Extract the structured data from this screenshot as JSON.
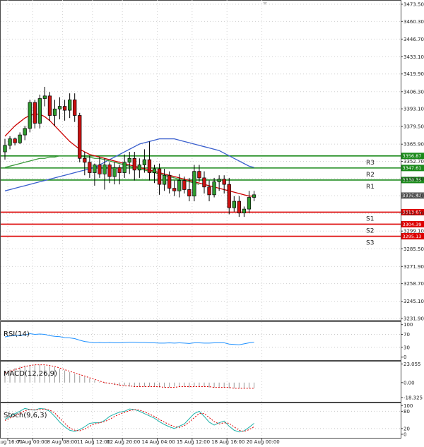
{
  "chart_data": {
    "type": "candlestick",
    "title": "",
    "grid": true,
    "price_axis": {
      "ylim": [
        3231.9,
        3473.5
      ],
      "ticks": [
        3473.5,
        3460.3,
        3446.7,
        3433.1,
        3419.9,
        3406.3,
        3393.1,
        3379.5,
        3365.9,
        3352.7,
        3339.5,
        3326.3,
        3312.7,
        3299.1,
        3285.5,
        3271.9,
        3258.7,
        3245.1,
        3231.9
      ],
      "tick_labels": [
        "3473.50",
        "3460.30",
        "3446.70",
        "3433.10",
        "3419.90",
        "3406.30",
        "3393.10",
        "3379.50",
        "3365.90",
        "3352.70",
        "3339.50",
        "3326.30",
        "3312.70",
        "3299.10",
        "3285.50",
        "3271.90",
        "3258.70",
        "3245.10",
        "3231.90"
      ]
    },
    "time_axis": {
      "labels": [
        "6 Aug 16:00",
        "7 Aug 00:00",
        "8 Aug 08:00",
        "11 Aug 12:00",
        "12 Aug 20:00",
        "14 Aug 04:00",
        "15 Aug 12:00",
        "18 Aug 16:00",
        "20 Aug 00:00"
      ],
      "label_index": [
        0,
        5,
        11,
        17,
        23,
        30,
        37,
        44,
        51
      ]
    },
    "candles": [
      [
        3360,
        3370,
        3354,
        3365
      ],
      [
        3365,
        3372,
        3362,
        3370
      ],
      [
        3370,
        3371,
        3365,
        3367
      ],
      [
        3367,
        3375,
        3366,
        3373
      ],
      [
        3373,
        3380,
        3369,
        3378
      ],
      [
        3378,
        3400,
        3375,
        3398
      ],
      [
        3398,
        3400,
        3378,
        3382
      ],
      [
        3382,
        3404,
        3378,
        3401
      ],
      [
        3401,
        3410,
        3395,
        3403
      ],
      [
        3403,
        3406,
        3384,
        3388
      ],
      [
        3388,
        3400,
        3380,
        3393
      ],
      [
        3393,
        3402,
        3385,
        3395
      ],
      [
        3395,
        3400,
        3384,
        3392
      ],
      [
        3392,
        3405,
        3386,
        3400
      ],
      [
        3400,
        3405,
        3383,
        3388
      ],
      [
        3388,
        3390,
        3352,
        3355
      ],
      [
        3355,
        3360,
        3342,
        3352
      ],
      [
        3352,
        3357,
        3340,
        3344
      ],
      [
        3344,
        3351,
        3334,
        3350
      ],
      [
        3350,
        3356,
        3340,
        3343
      ],
      [
        3343,
        3355,
        3331,
        3350
      ],
      [
        3350,
        3352,
        3336,
        3341
      ],
      [
        3341,
        3352,
        3335,
        3348
      ],
      [
        3348,
        3350,
        3335,
        3344
      ],
      [
        3344,
        3358,
        3340,
        3352
      ],
      [
        3352,
        3360,
        3343,
        3355
      ],
      [
        3355,
        3360,
        3338,
        3346
      ],
      [
        3346,
        3355,
        3340,
        3350
      ],
      [
        3350,
        3362,
        3344,
        3354
      ],
      [
        3354,
        3368,
        3338,
        3344
      ],
      [
        3344,
        3350,
        3336,
        3347
      ],
      [
        3347,
        3351,
        3327,
        3335
      ],
      [
        3335,
        3347,
        3330,
        3342
      ],
      [
        3342,
        3345,
        3328,
        3332
      ],
      [
        3332,
        3338,
        3326,
        3330
      ],
      [
        3330,
        3343,
        3325,
        3338
      ],
      [
        3338,
        3341,
        3328,
        3331
      ],
      [
        3331,
        3340,
        3322,
        3326
      ],
      [
        3326,
        3350,
        3322,
        3345
      ],
      [
        3345,
        3350,
        3337,
        3340
      ],
      [
        3340,
        3345,
        3328,
        3333
      ],
      [
        3333,
        3338,
        3322,
        3327
      ],
      [
        3327,
        3340,
        3325,
        3337
      ],
      [
        3337,
        3342,
        3330,
        3339
      ],
      [
        3339,
        3342,
        3328,
        3335
      ],
      [
        3335,
        3340,
        3312,
        3317
      ],
      [
        3317,
        3326,
        3314,
        3322
      ],
      [
        3322,
        3326,
        3310,
        3313
      ],
      [
        3313,
        3318,
        3310,
        3316
      ],
      [
        3316,
        3330,
        3313,
        3325
      ],
      [
        3325,
        3330,
        3322,
        3327
      ]
    ],
    "ma_fast": {
      "name": "",
      "color": "#cc0000",
      "values": [
        3372,
        3376,
        3380,
        3383,
        3386,
        3388,
        3389,
        3389,
        3387,
        3384,
        3380,
        3376,
        3372,
        3368,
        3365,
        3362,
        3360,
        3358,
        3357,
        3356,
        3355,
        3354,
        3353,
        3352,
        3351,
        3350,
        3349,
        3348,
        3347,
        3346,
        3345,
        3344,
        3343,
        3342,
        3341,
        3340,
        3339,
        3338,
        3337,
        3336,
        3335,
        3334,
        3333,
        3332,
        3331,
        3330,
        3329,
        3328,
        3327,
        3326,
        3326
      ]
    },
    "ma_mid": {
      "name": "",
      "color": "#3a9a3a",
      "values": [
        3348,
        3349,
        3350,
        3351,
        3352,
        3353,
        3354,
        3355,
        3355,
        3356,
        3356,
        3357,
        3357,
        3357,
        3357,
        3357,
        3356,
        3356,
        3355,
        3355,
        3354,
        3353,
        3352,
        3351,
        3350,
        3349,
        3348,
        3347,
        3346,
        3345,
        3344,
        3343,
        3342,
        3341,
        3340,
        3339,
        3338,
        3337,
        3336,
        3335
      ]
    },
    "ma_slow": {
      "name": "",
      "color": "#3a5fcd",
      "values": [
        3330,
        3331,
        3332,
        3333,
        3334,
        3335,
        3336,
        3337,
        3338,
        3339,
        3340,
        3341,
        3342,
        3343,
        3344,
        3345,
        3346,
        3347,
        3348,
        3350,
        3352,
        3354,
        3356,
        3358,
        3360,
        3362,
        3364,
        3366,
        3367,
        3368,
        3369,
        3370,
        3370,
        3370,
        3370,
        3369,
        3368,
        3367,
        3366,
        3365,
        3364,
        3363,
        3362,
        3361,
        3359,
        3357,
        3355,
        3353,
        3351,
        3349,
        3348
      ]
    },
    "levels": [
      {
        "label": "R3",
        "value": 3356.87,
        "tag": "3356.87",
        "color": "#1b8a1b"
      },
      {
        "label": "",
        "value": 3352.7,
        "tag": "3352.70",
        "color": ""
      },
      {
        "label": "R2",
        "value": 3347.61,
        "tag": "3347.61",
        "color": "#1b8a1b"
      },
      {
        "label": "R1",
        "value": 3338.35,
        "tag": "3338.35",
        "color": "#1b8a1b"
      },
      {
        "label": "",
        "value": 3326.42,
        "tag": "3326.42",
        "color": "#555555"
      },
      {
        "label": "S1",
        "value": 3313.65,
        "tag": "3313.65",
        "color": "#dd0000"
      },
      {
        "label": "S2",
        "value": 3304.39,
        "tag": "3304.39",
        "color": "#dd0000"
      },
      {
        "label": "",
        "value": 3299.1,
        "tag": "3299.10",
        "color": ""
      },
      {
        "label": "S3",
        "value": 3295.13,
        "tag": "3295.13",
        "color": "#dd0000"
      }
    ],
    "rsi": {
      "label": "RSI(14)",
      "ticks": [
        100,
        70,
        30,
        0
      ],
      "tick_labels": [
        "100",
        "70",
        "30",
        "0"
      ],
      "values": [
        62,
        65,
        66,
        67,
        68,
        72,
        70,
        71,
        70,
        66,
        64,
        63,
        60,
        59,
        57,
        52,
        48,
        46,
        44,
        45,
        44,
        45,
        44,
        44,
        45,
        46,
        46,
        45,
        45,
        44,
        44,
        43,
        43,
        44,
        43,
        44,
        43,
        42,
        44,
        44,
        43,
        43,
        44,
        44,
        44,
        40,
        39,
        38,
        41,
        44,
        46
      ]
    },
    "macd": {
      "label": "MACD(12,26,9)",
      "ticks": [
        23.055,
        0.0,
        -18.325
      ],
      "tick_labels": [
        "23.055",
        "0.00",
        "-18.325"
      ],
      "histogram": [
        14,
        16,
        18,
        20,
        21,
        22,
        22,
        22,
        21,
        20,
        19,
        17,
        15,
        13,
        11,
        9,
        7,
        5,
        3,
        1,
        -1,
        -2,
        -3,
        -4,
        -4,
        -5,
        -5,
        -5,
        -5,
        -5,
        -5,
        -6,
        -6,
        -6,
        -5,
        -5,
        -5,
        -6,
        -5,
        -5,
        -5,
        -6,
        -6,
        -6,
        -6,
        -7,
        -7,
        -7,
        -7,
        -7,
        -7
      ],
      "signal": [
        12,
        14,
        16,
        18,
        20,
        21,
        22,
        22,
        22,
        21,
        20,
        18,
        16,
        14,
        12,
        10,
        8,
        6,
        4,
        2,
        0,
        -1,
        -2,
        -3,
        -4,
        -4,
        -5,
        -5,
        -5,
        -5,
        -5,
        -5,
        -6,
        -6,
        -6,
        -5,
        -5,
        -5,
        -5,
        -5,
        -5,
        -5,
        -6,
        -6,
        -6,
        -6,
        -7,
        -7,
        -7,
        -7,
        -7
      ]
    },
    "stoch": {
      "label": "Stoch(9,6,3)",
      "ticks": [
        100,
        80,
        20,
        0
      ],
      "tick_labels": [
        "100",
        "80",
        "20",
        "0"
      ],
      "main": [
        52,
        62,
        72,
        80,
        90,
        86,
        84,
        90,
        88,
        80,
        62,
        42,
        26,
        14,
        10,
        16,
        26,
        38,
        40,
        40,
        48,
        62,
        70,
        77,
        80,
        88,
        86,
        80,
        72,
        64,
        56,
        44,
        34,
        26,
        20,
        28,
        36,
        54,
        72,
        80,
        62,
        42,
        32,
        40,
        46,
        28,
        14,
        8,
        12,
        24,
        38
      ],
      "signal": [
        48,
        56,
        64,
        72,
        82,
        86,
        85,
        86,
        88,
        84,
        74,
        56,
        38,
        22,
        14,
        12,
        18,
        28,
        36,
        40,
        44,
        52,
        62,
        70,
        76,
        82,
        86,
        84,
        78,
        70,
        62,
        52,
        42,
        34,
        26,
        24,
        30,
        42,
        58,
        72,
        72,
        58,
        44,
        36,
        40,
        38,
        26,
        14,
        10,
        16,
        26
      ]
    }
  }
}
